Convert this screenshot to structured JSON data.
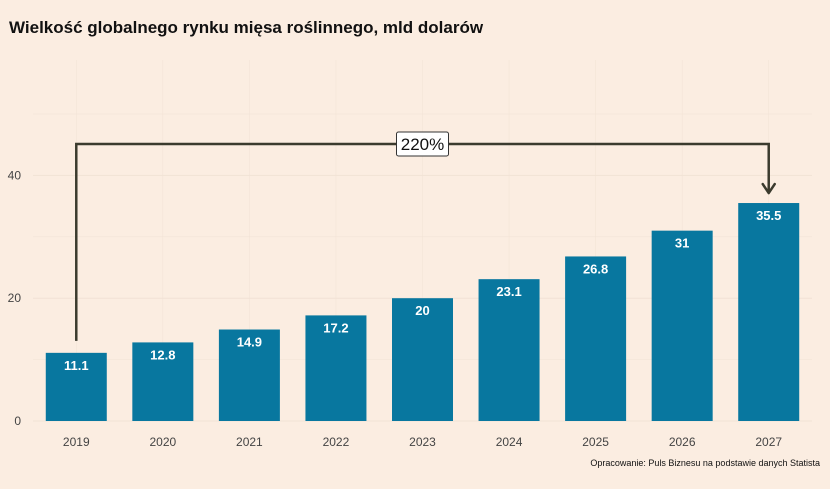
{
  "title": "Wielkość globalnego rynku mięsa roślinnego, mld dolarów",
  "caption": "Opracowanie: Puls Biznesu na podstawie danych Statista",
  "colors": {
    "background": "#fbede1",
    "bar": "#08779f",
    "arrow": "#3b3b2e",
    "grid": "#f1e2d5"
  },
  "chart_data": {
    "type": "bar",
    "title": "Wielkość globalnego rynku mięsa roślinnego, mld dolarów",
    "categories": [
      "2019",
      "2020",
      "2021",
      "2022",
      "2023",
      "2024",
      "2025",
      "2026",
      "2027"
    ],
    "values": [
      11.1,
      12.8,
      14.9,
      17.2,
      20,
      23.1,
      26.8,
      31,
      35.5
    ],
    "value_labels": [
      "11.1",
      "12.8",
      "14.9",
      "17.2",
      "20",
      "23.1",
      "26.8",
      "31",
      "35.5"
    ],
    "yticks": [
      "0",
      "20",
      "40"
    ],
    "ylim": [
      0,
      55
    ],
    "xlabel": "",
    "ylabel": "",
    "grid": true,
    "annotation": {
      "text": "220%",
      "from": "2019",
      "to": "2027"
    }
  }
}
